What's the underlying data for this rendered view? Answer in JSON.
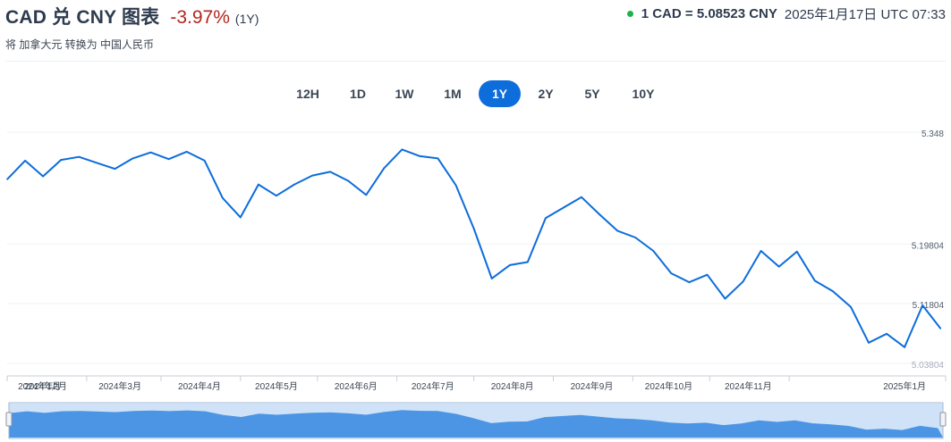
{
  "header": {
    "title": "CAD 兑 CNY 图表",
    "change": "-3.97%",
    "period": "(1Y)",
    "subtitle": "将 加拿大元 转换为 中国人民币",
    "rate": "1 CAD = 5.08523 CNY",
    "timestamp": "2025年1月17日 UTC 07:33"
  },
  "tabs": [
    {
      "label": "12H",
      "active": false
    },
    {
      "label": "1D",
      "active": false
    },
    {
      "label": "1W",
      "active": false
    },
    {
      "label": "1M",
      "active": false
    },
    {
      "label": "1Y",
      "active": true
    },
    {
      "label": "2Y",
      "active": false
    },
    {
      "label": "5Y",
      "active": false
    },
    {
      "label": "10Y",
      "active": false
    }
  ],
  "colors": {
    "line": "#0c6ddb",
    "navigator_fill": "#4c94e4",
    "navigator_bg": "#cfe2f7",
    "negative": "#b3261e"
  },
  "chart_data": {
    "type": "line",
    "title": "CAD 兑 CNY 图表",
    "xlabel": "",
    "ylabel": "",
    "x_ticks": [
      "2024年1月",
      "2024年2月",
      "2024年3月",
      "2024年4月",
      "2024年5月",
      "2024年6月",
      "2024年7月",
      "2024年8月",
      "2024年9月",
      "2024年10月",
      "2024年11月",
      "2025年1月"
    ],
    "y_ticks": [
      "5.348",
      "5.19804",
      "5.11804",
      "5.03804"
    ],
    "ylim": [
      5.03804,
      5.348
    ],
    "x": [
      "2024-01-17",
      "2024-01-24",
      "2024-01-31",
      "2024-02-07",
      "2024-02-14",
      "2024-02-21",
      "2024-02-28",
      "2024-03-06",
      "2024-03-13",
      "2024-03-20",
      "2024-03-27",
      "2024-04-03",
      "2024-04-10",
      "2024-04-17",
      "2024-04-24",
      "2024-05-01",
      "2024-05-08",
      "2024-05-15",
      "2024-05-22",
      "2024-05-29",
      "2024-06-05",
      "2024-06-12",
      "2024-06-19",
      "2024-06-26",
      "2024-07-03",
      "2024-07-10",
      "2024-07-17",
      "2024-07-24",
      "2024-07-31",
      "2024-08-07",
      "2024-08-14",
      "2024-08-21",
      "2024-08-28",
      "2024-09-04",
      "2024-09-11",
      "2024-09-18",
      "2024-09-25",
      "2024-10-02",
      "2024-10-09",
      "2024-10-16",
      "2024-10-23",
      "2024-10-30",
      "2024-11-06",
      "2024-11-13",
      "2024-11-20",
      "2024-11-27",
      "2024-12-04",
      "2024-12-11",
      "2024-12-18",
      "2024-12-25",
      "2025-01-01",
      "2025-01-08",
      "2025-01-15"
    ],
    "series": [
      {
        "values": [
          5.292,
          5.317,
          5.296,
          5.318,
          5.322,
          5.314,
          5.306,
          5.32,
          5.328,
          5.319,
          5.329,
          5.317,
          5.267,
          5.241,
          5.285,
          5.27,
          5.285,
          5.297,
          5.302,
          5.29,
          5.271,
          5.307,
          5.332,
          5.323,
          5.32,
          5.284,
          5.226,
          5.159,
          5.177,
          5.181,
          5.24,
          5.254,
          5.268,
          5.245,
          5.223,
          5.214,
          5.196,
          5.166,
          5.154,
          5.164,
          5.132,
          5.155,
          5.196,
          5.175,
          5.195,
          5.156,
          5.142,
          5.121,
          5.073,
          5.085,
          5.067,
          5.123,
          5.092
        ]
      }
    ]
  }
}
